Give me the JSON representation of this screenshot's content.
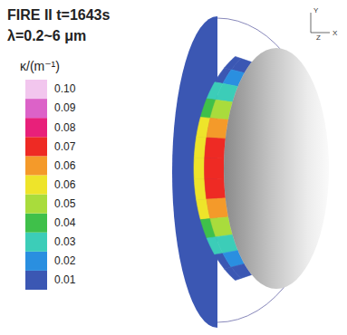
{
  "chart_data": {
    "type": "contour",
    "title": "FIRE II t=1643s",
    "subtitle": "λ=0.2~6 μm",
    "tick_labels": false,
    "triad": [
      "Y",
      "Z",
      "X"
    ],
    "colorbar": {
      "title": "κ/(m⁻¹)",
      "range": [
        0.01,
        0.1
      ],
      "ticks": [
        0.01,
        {
          "value": 0.019,
          "label": "0.02"
        },
        {
          "value": 0.028,
          "label": "0.03"
        },
        {
          "value": 0.037,
          "label": "0.04"
        },
        {
          "value": 0.046,
          "label": "0.05"
        },
        {
          "value": 0.055,
          "label": "0.06"
        },
        {
          "value": 0.064,
          "label": "0.06"
        },
        {
          "value": 0.073,
          "label": "0.07"
        },
        {
          "value": 0.082,
          "label": "0.08"
        },
        {
          "value": 0.091,
          "label": "0.09"
        },
        {
          "value": 0.1,
          "label": "0.10"
        }
      ],
      "colors": [
        "#3b57b3",
        "#2a8fe0",
        "#3ccdb8",
        "#3fc04a",
        "#a9dc3c",
        "#eee42a",
        "#f49a2a",
        "#ee2a24",
        "#e8207a",
        "#dc62c8",
        "#f2c6ee"
      ]
    },
    "field_background": 0.01,
    "field": [
      [
        0.01,
        0.015,
        0.03,
        0.045,
        0.058,
        0.06,
        0.058,
        0.06,
        0.058,
        0.045,
        0.03,
        0.015,
        0.01
      ],
      [
        0.01,
        0.02,
        0.035,
        0.05,
        0.065,
        0.075,
        0.078,
        0.075,
        0.065,
        0.05,
        0.035,
        0.02,
        0.01
      ]
    ]
  }
}
